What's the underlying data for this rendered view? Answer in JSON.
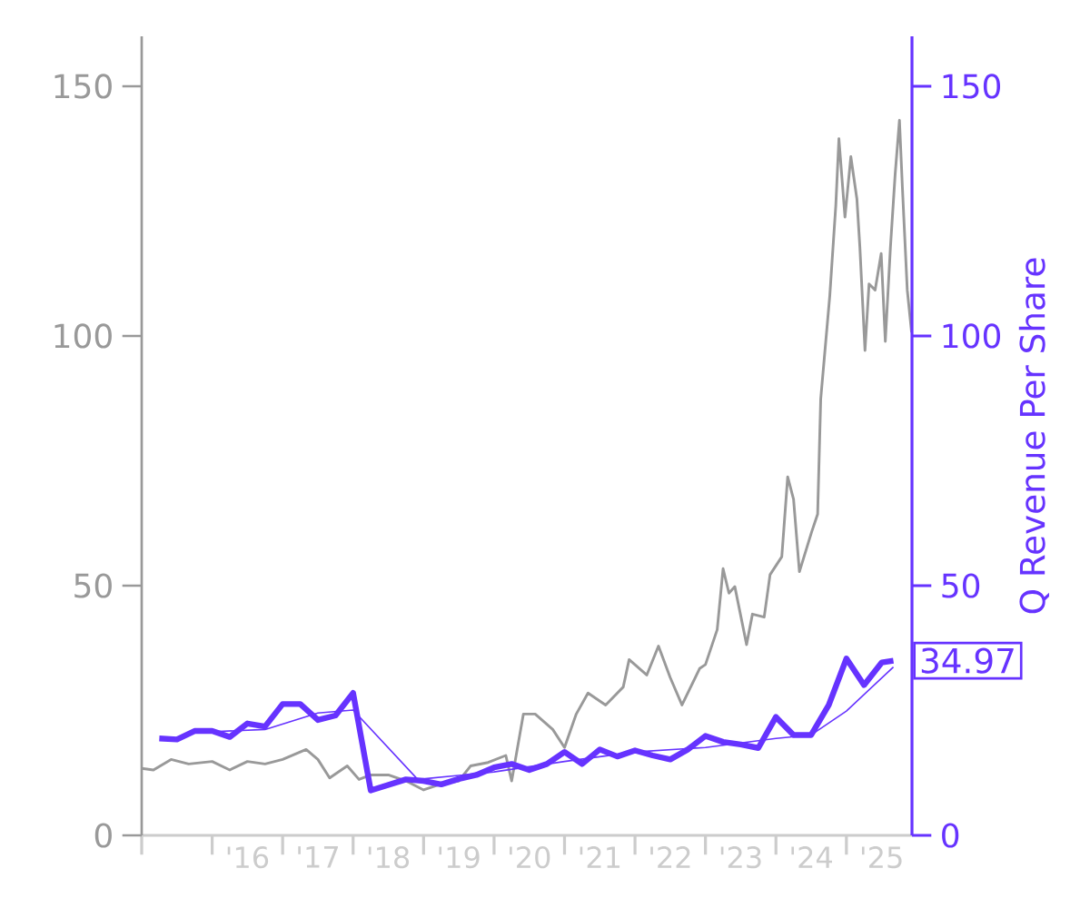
{
  "chart_data": {
    "type": "line",
    "y2label": "Q Revenue Per Share",
    "grid": false,
    "xlim": [
      "2015-01",
      "2025-12-06"
    ],
    "xticks": [
      {
        "value": "2015-01",
        "label": null
      },
      {
        "value": "2016-01",
        "label": null
      },
      {
        "value": "2016-07",
        "label": "'16"
      },
      {
        "value": "2017-01",
        "label": null
      },
      {
        "value": "2017-07",
        "label": "'17"
      },
      {
        "value": "2018-01",
        "label": null
      },
      {
        "value": "2018-07",
        "label": "'18"
      },
      {
        "value": "2019-01",
        "label": null
      },
      {
        "value": "2019-07",
        "label": "'19"
      },
      {
        "value": "2020-01",
        "label": null
      },
      {
        "value": "2020-07",
        "label": "'20"
      },
      {
        "value": "2021-01",
        "label": null
      },
      {
        "value": "2021-07",
        "label": "'21"
      },
      {
        "value": "2022-01",
        "label": null
      },
      {
        "value": "2022-07",
        "label": "'22"
      },
      {
        "value": "2023-01",
        "label": null
      },
      {
        "value": "2023-07",
        "label": "'23"
      },
      {
        "value": "2024-01",
        "label": null
      },
      {
        "value": "2024-07",
        "label": "'24"
      },
      {
        "value": "2025-01",
        "label": null
      },
      {
        "value": "2025-07",
        "label": "'25"
      }
    ],
    "ylim": [
      0,
      160
    ],
    "yticks": [
      0,
      50,
      100,
      150
    ],
    "y2lim": [
      0,
      160
    ],
    "y2ticks": [
      0,
      50,
      100,
      150
    ],
    "series": [
      {
        "color": "#999999",
        "axis": "y",
        "x": [
          "2015-01",
          "2015-03",
          "2015-06",
          "2015-09",
          "2016-01",
          "2016-04",
          "2016-07",
          "2016-10",
          "2017-01",
          "2017-05",
          "2017-07",
          "2017-09",
          "2017-12",
          "2018-02",
          "2018-04",
          "2018-07",
          "2018-10",
          "2019-01",
          "2019-04",
          "2019-07",
          "2019-09",
          "2019-12",
          "2020-03",
          "2020-04",
          "2020-06",
          "2020-08",
          "2020-11",
          "2021-01",
          "2021-03",
          "2021-05",
          "2021-08",
          "2021-11",
          "2021-12",
          "2022-03",
          "2022-05",
          "2022-07",
          "2022-09",
          "2022-12",
          "2023-01",
          "2023-03",
          "2023-04",
          "2023-05",
          "2023-06",
          "2023-08",
          "2023-09",
          "2023-11",
          "2023-12",
          "2024-02",
          "2024-03",
          "2024-04",
          "2024-05",
          "2024-07-03",
          "2024-08-04",
          "2024-08-20",
          "2024-10-06",
          "2024-11-07",
          "2024-11-23",
          "2024-12-24",
          "2025-01-24",
          "2025-02-25",
          "2025-03-10",
          "2025-04-06",
          "2025-04-27",
          "2025-05-28",
          "2025-06-29",
          "2025-07-20",
          "2025-08-16",
          "2025-09-10",
          "2025-10-02",
          "2025-10-17",
          "2025-11-12",
          "2025-12-04"
        ],
        "values": [
          13.4,
          13.1,
          15.2,
          14.3,
          14.8,
          13.1,
          14.8,
          14.3,
          15.2,
          17.2,
          15.2,
          11.5,
          13.9,
          11.2,
          12.1,
          12.1,
          10.9,
          9.1,
          10.3,
          10.9,
          13.9,
          14.6,
          16.0,
          10.9,
          24.3,
          24.3,
          21.2,
          17.6,
          24.3,
          28.5,
          26.1,
          29.7,
          35.2,
          32.1,
          37.9,
          31.6,
          26.1,
          33.4,
          34.2,
          41.2,
          53.4,
          48.5,
          49.8,
          38.2,
          44.3,
          43.7,
          52.2,
          55.8,
          71.8,
          67.3,
          52.8,
          60.7,
          64.3,
          87.4,
          108.0,
          126.2,
          139.5,
          123.8,
          135.9,
          127.4,
          117.7,
          97.1,
          110.4,
          109.2,
          116.5,
          98.9,
          117.7,
          132.3,
          143.2,
          129.9,
          109.2,
          100.7
        ]
      },
      {
        "color": "#6633ff",
        "axis": "y2",
        "x": [
          "2015-04",
          "2015-07",
          "2015-10",
          "2016-01",
          "2016-04",
          "2016-07",
          "2016-10",
          "2017-01",
          "2017-04",
          "2017-07",
          "2017-10",
          "2018-01",
          "2018-04",
          "2018-10",
          "2019-01",
          "2019-04",
          "2019-07",
          "2019-10",
          "2020-01",
          "2020-04",
          "2020-07",
          "2020-10",
          "2021-01",
          "2021-04",
          "2021-07",
          "2021-10",
          "2022-01",
          "2022-04",
          "2022-07",
          "2022-10",
          "2023-01",
          "2023-04",
          "2023-07",
          "2023-10",
          "2024-01",
          "2024-04",
          "2024-07",
          "2024-10",
          "2025-01",
          "2025-04",
          "2025-07",
          "2025-09"
        ],
        "values": [
          19.4,
          19.2,
          20.9,
          20.9,
          19.7,
          22.4,
          21.8,
          26.3,
          26.3,
          23.1,
          24.0,
          28.5,
          9.0,
          11.2,
          10.9,
          10.2,
          11.3,
          12.1,
          13.6,
          14.3,
          13.1,
          14.3,
          16.7,
          14.3,
          17.2,
          15.8,
          17.0,
          16.0,
          15.2,
          17.2,
          19.9,
          18.7,
          18.2,
          17.5,
          23.7,
          20.1,
          20.1,
          26.1,
          35.4,
          30.1,
          34.6,
          34.97
        ],
        "value_labels": [
          null,
          null,
          null,
          null,
          null,
          null,
          null,
          null,
          null,
          null,
          null,
          null,
          null,
          null,
          null,
          null,
          null,
          null,
          null,
          null,
          null,
          null,
          null,
          null,
          null,
          null,
          null,
          null,
          null,
          null,
          null,
          null,
          null,
          null,
          null,
          null,
          null,
          null,
          null,
          null,
          null,
          "34.97"
        ]
      },
      {
        "color": "#6633ff",
        "axis": "y2",
        "x": [
          "2015-10",
          "2016-10",
          "2017-07",
          "2018-01",
          "2018-12",
          "2020-01",
          "2021-01",
          "2022-01",
          "2023-01",
          "2024-01",
          "2024-07",
          "2025-01",
          "2025-09"
        ],
        "values": [
          20.6,
          21.2,
          24.5,
          25.1,
          11.2,
          12.7,
          14.8,
          16.7,
          17.6,
          19.4,
          20.1,
          24.9,
          33.7
        ]
      }
    ]
  }
}
